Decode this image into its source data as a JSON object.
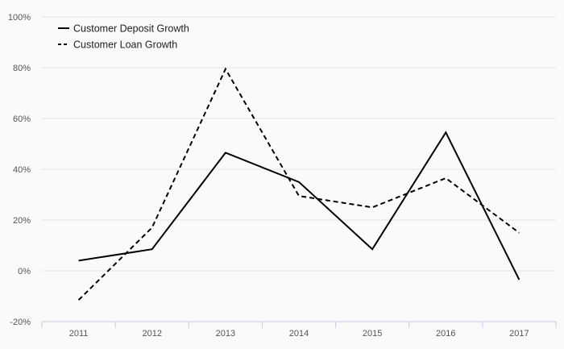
{
  "chart_data": {
    "type": "line",
    "title": "",
    "xlabel": "",
    "ylabel": "",
    "categories": [
      "2011",
      "2012",
      "2013",
      "2014",
      "2015",
      "2016",
      "2017"
    ],
    "ylim": [
      -20,
      100
    ],
    "y_ticks": [
      -20,
      0,
      20,
      40,
      60,
      80,
      100
    ],
    "y_tick_labels": [
      "-20%",
      "0%",
      "20%",
      "40%",
      "60%",
      "80%",
      "100%"
    ],
    "grid": "horizontal",
    "legend_position": "top-left",
    "series": [
      {
        "name": "Customer Deposit Growth",
        "style": "solid",
        "color": "#000000",
        "values": [
          4,
          8.5,
          46.5,
          35,
          8.5,
          54.5,
          -3.5
        ]
      },
      {
        "name": "Customer Loan Growth",
        "style": "dashed",
        "color": "#000000",
        "values": [
          -11.5,
          17,
          79.5,
          29.5,
          25,
          36.5,
          15
        ]
      }
    ]
  }
}
